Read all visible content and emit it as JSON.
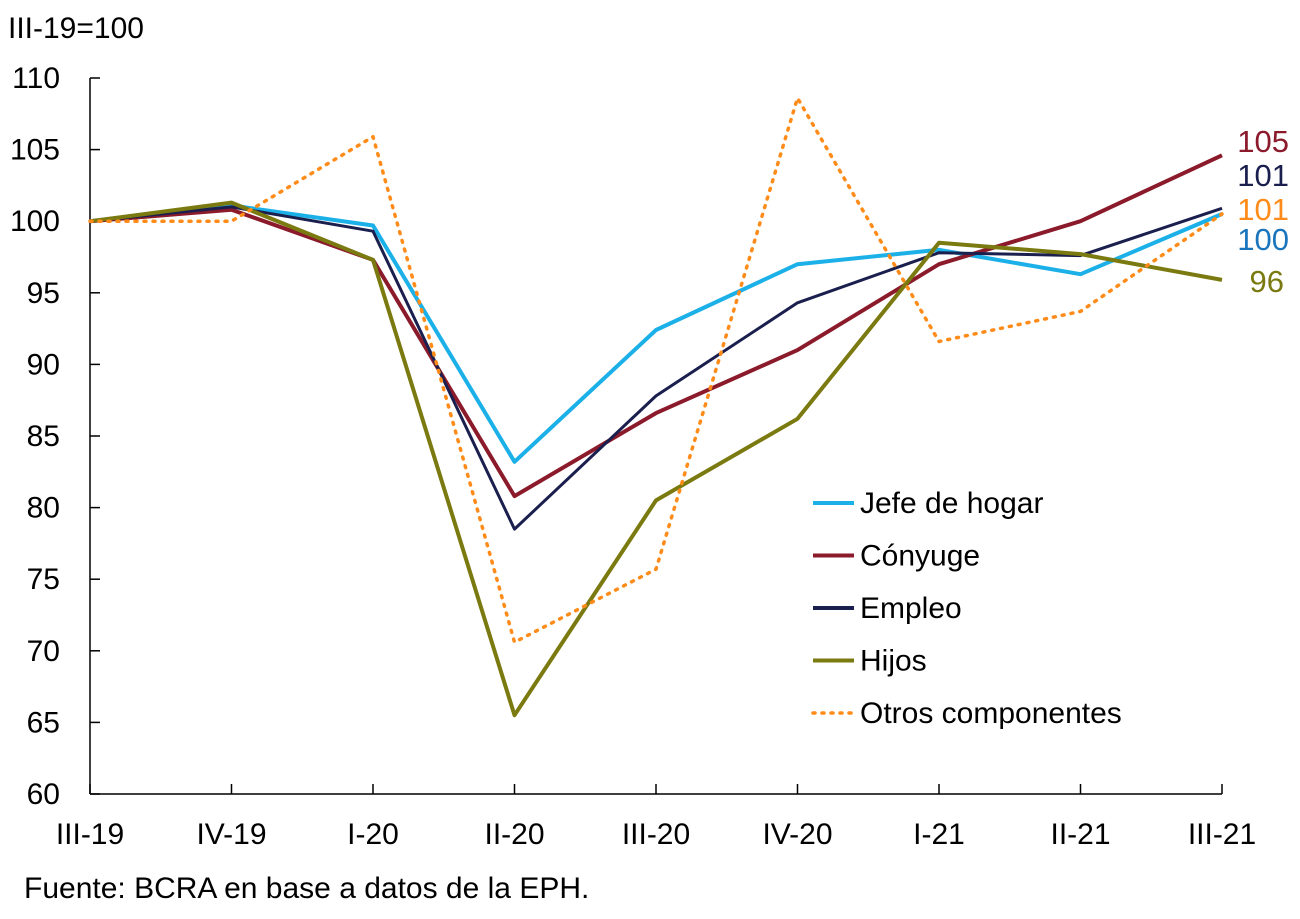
{
  "chart_data": {
    "type": "line",
    "title": "",
    "unit_label": "III-19=100",
    "source": "Fuente: BCRA en base a datos de la EPH.",
    "categories": [
      "III-19",
      "IV-19",
      "I-20",
      "II-20",
      "III-20",
      "IV-20",
      "I-21",
      "II-21",
      "III-21"
    ],
    "ylim": [
      60,
      110
    ],
    "yticks": [
      "60",
      "65",
      "70",
      "75",
      "80",
      "85",
      "90",
      "95",
      "100",
      "105",
      "110"
    ],
    "grid": false,
    "legend_position": "bottom-right",
    "series": [
      {
        "name": "Jefe de hogar",
        "color": "#1cb0e8",
        "style": "solid",
        "values": [
          100,
          101.1,
          99.7,
          83.2,
          92.4,
          97.0,
          98.0,
          96.3,
          100.5
        ]
      },
      {
        "name": "Cónyuge",
        "color": "#8b1a2b",
        "style": "solid",
        "values": [
          100,
          100.8,
          97.3,
          80.8,
          86.6,
          91.0,
          97.0,
          100.0,
          104.6
        ]
      },
      {
        "name": "Empleo",
        "color": "#1a1f4e",
        "style": "solid",
        "values": [
          100,
          101.0,
          99.3,
          78.5,
          87.8,
          94.3,
          97.8,
          97.6,
          100.9
        ]
      },
      {
        "name": "Hijos",
        "color": "#7a7a10",
        "style": "solid",
        "values": [
          100,
          101.3,
          97.3,
          65.5,
          80.5,
          86.2,
          98.5,
          97.7,
          95.9
        ]
      },
      {
        "name": "Otros componentes",
        "color": "#ff8c1a",
        "style": "dotted",
        "values": [
          100,
          100.0,
          105.9,
          70.6,
          75.7,
          108.6,
          91.6,
          93.7,
          100.5
        ]
      }
    ],
    "end_labels": [
      {
        "text": "105",
        "color": "#8b1a2b"
      },
      {
        "text": "101",
        "color": "#1a1f4e"
      },
      {
        "text": "101",
        "color": "#ff8c1a"
      },
      {
        "text": "100",
        "color": "#1b75bc"
      },
      {
        "text": "96",
        "color": "#7a7a10"
      }
    ]
  }
}
